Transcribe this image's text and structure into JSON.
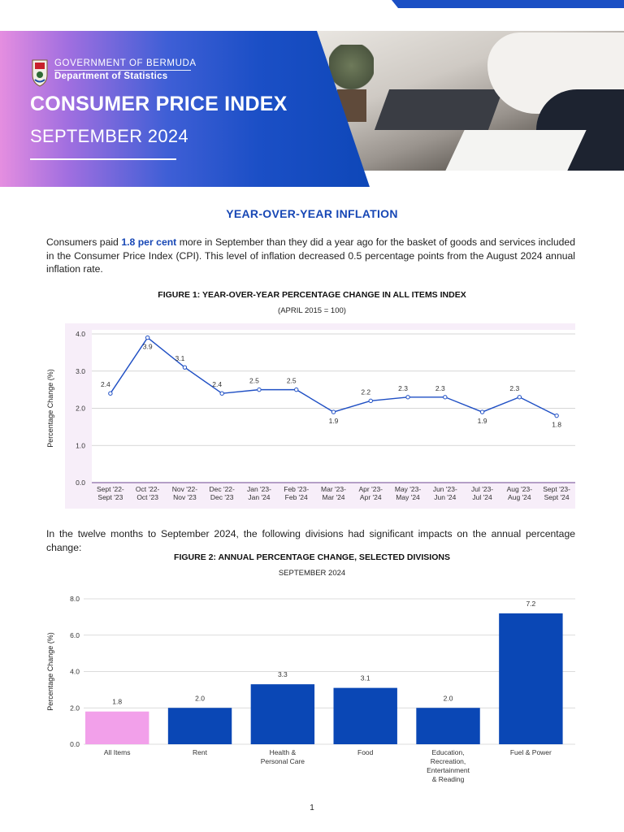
{
  "header": {
    "gov_line": "GOVERNMENT OF BERMUDA",
    "dept_line": "Department of Statistics",
    "title": "CONSUMER PRICE INDEX",
    "date": "SEPTEMBER 2024",
    "accent": "#1747b5"
  },
  "section": {
    "title": "YEAR-OVER-YEAR INFLATION"
  },
  "para1": {
    "pre": "Consumers paid ",
    "highlight": "1.8 per cent",
    "post": " more in September than they did a year ago for the basket of goods and services included in the Consumer Price Index (CPI). This level of inflation decreased 0.5 percentage points from the August 2024 annual inflation rate."
  },
  "para2": {
    "text": "In the twelve months to September 2024, the following divisions had significant impacts on the annual percentage change:"
  },
  "figure1": {
    "title": "FIGURE 1: YEAR-OVER-YEAR PERCENTAGE CHANGE IN ALL ITEMS INDEX",
    "subtitle": "(APRIL 2015 = 100)"
  },
  "figure2": {
    "title": "FIGURE 2: ANNUAL PERCENTAGE CHANGE, SELECTED DIVISIONS",
    "subtitle": "SEPTEMBER 2024"
  },
  "page_number": "1",
  "chart_data": [
    {
      "type": "line",
      "title": "FIGURE 1: YEAR-OVER-YEAR PERCENTAGE CHANGE IN ALL ITEMS INDEX",
      "subtitle": "(APRIL 2015 = 100)",
      "ylabel": "Percentage Change (%)",
      "xlabel": "",
      "ylim": [
        0,
        4
      ],
      "yticks": [
        "0.0",
        "1.0",
        "2.0",
        "3.0",
        "4.0"
      ],
      "categories": [
        [
          "Sept '22-",
          "Sept '23"
        ],
        [
          "Oct '22-",
          "Oct '23"
        ],
        [
          "Nov '22-",
          "Nov '23"
        ],
        [
          "Dec '22-",
          "Dec '23"
        ],
        [
          "Jan '23-",
          "Jan '24"
        ],
        [
          "Feb '23-",
          "Feb '24"
        ],
        [
          "Mar '23-",
          "Mar '24"
        ],
        [
          "Apr '23-",
          "Apr '24"
        ],
        [
          "May '23-",
          "May '24"
        ],
        [
          "Jun '23-",
          "Jun '24"
        ],
        [
          "Jul '23-",
          "Jul '24"
        ],
        [
          "Aug '23-",
          "Aug '24"
        ],
        [
          "Sept '23-",
          "Sept '24"
        ]
      ],
      "values": [
        2.4,
        3.9,
        3.1,
        2.4,
        2.5,
        2.5,
        1.9,
        2.2,
        2.3,
        2.3,
        1.9,
        2.3,
        1.8
      ],
      "labels": [
        "2.4",
        "3.9",
        "3.1",
        "2.4",
        "2.5",
        "2.5",
        "1.9",
        "2.2",
        "2.3",
        "2.3",
        "1.9",
        "2.3",
        "1.8"
      ],
      "label_positions": [
        "above",
        "below",
        "above",
        "above",
        "above",
        "above",
        "below",
        "above",
        "above",
        "above",
        "below",
        "above",
        "below"
      ],
      "line_color": "#1f4fc4",
      "background": "#f7eef9",
      "grid": true
    },
    {
      "type": "bar",
      "title": "FIGURE 2: ANNUAL PERCENTAGE CHANGE, SELECTED DIVISIONS",
      "subtitle": "SEPTEMBER 2024",
      "ylabel": "Percentage Change (%)",
      "xlabel": "",
      "ylim": [
        0,
        8
      ],
      "yticks": [
        "0.0",
        "2.0",
        "4.0",
        "6.0",
        "8.0"
      ],
      "categories": [
        [
          "All Items"
        ],
        [
          "Rent"
        ],
        [
          "Health &",
          "Personal Care"
        ],
        [
          "Food"
        ],
        [
          "Education,",
          "Recreation,",
          "Entertainment",
          "& Reading"
        ],
        [
          "Fuel & Power"
        ]
      ],
      "values": [
        1.8,
        2.0,
        3.3,
        3.1,
        2.0,
        7.2
      ],
      "labels": [
        "1.8",
        "2.0",
        "3.3",
        "3.1",
        "2.0",
        "7.2"
      ],
      "colors": [
        "#f2a0ea",
        "#0a47b5",
        "#0a47b5",
        "#0a47b5",
        "#0a47b5",
        "#0a47b5"
      ],
      "grid": true
    }
  ]
}
